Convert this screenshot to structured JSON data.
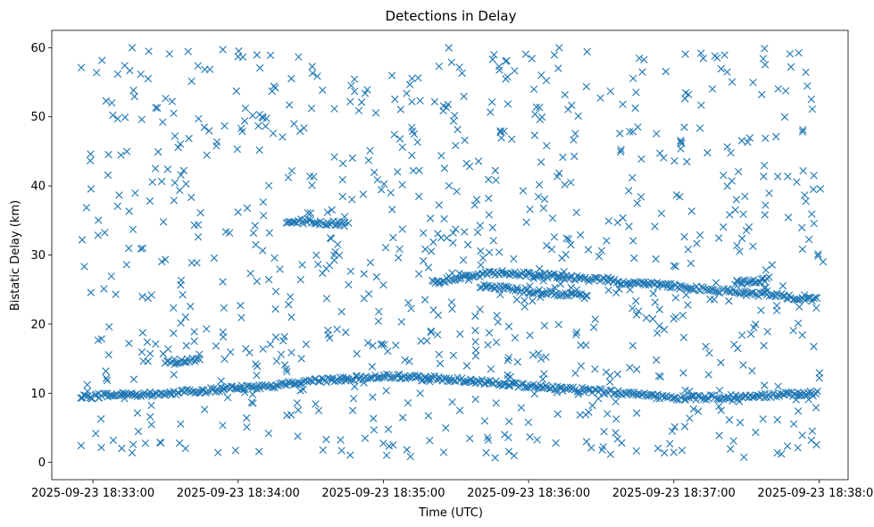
{
  "chart_data": {
    "type": "scatter",
    "title": "Detections in Delay",
    "xlabel": "Time (UTC)",
    "ylabel": "Bistatic Delay (km)",
    "marker": "x",
    "color": "#1f77b4",
    "grid": false,
    "x_tick_labels": [
      "2025-09-23 18:33:00",
      "2025-09-23 18:34:00",
      "2025-09-23 18:35:00",
      "2025-09-23 18:36:00",
      "2025-09-23 18:37:00",
      "2025-09-23 18:38:00"
    ],
    "y_ticks": [
      0,
      10,
      20,
      30,
      40,
      50,
      60
    ],
    "xlim": [
      "2025-09-23 18:32:43",
      "2025-09-23 18:38:12"
    ],
    "ylim": [
      -2.5,
      62.5
    ],
    "series": [
      {
        "trend_tracks": [
          {
            "points": [
              [
                "18:32:55",
                9.5
              ],
              [
                "18:33:30",
                10.0
              ],
              [
                "18:33:50",
                10.5
              ],
              [
                "18:34:10",
                11.0
              ],
              [
                "18:34:40",
                12.0
              ],
              [
                "18:35:00",
                12.5
              ],
              [
                "18:35:30",
                12.0
              ],
              [
                "18:36:00",
                11.0
              ],
              [
                "18:36:30",
                10.3
              ],
              [
                "18:37:00",
                9.3
              ],
              [
                "18:37:30",
                9.5
              ],
              [
                "18:38:00",
                10.0
              ]
            ]
          },
          {
            "points": [
              [
                "18:33:30",
                14.5
              ],
              [
                "18:33:45",
                14.8
              ]
            ]
          },
          {
            "points": [
              [
                "18:34:20",
                35.0
              ],
              [
                "18:34:45",
                34.5
              ]
            ]
          },
          {
            "points": [
              [
                "18:35:20",
                26.0
              ],
              [
                "18:35:45",
                27.5
              ],
              [
                "18:36:10",
                27.0
              ],
              [
                "18:36:40",
                26.0
              ],
              [
                "18:37:00",
                25.5
              ],
              [
                "18:37:30",
                24.5
              ],
              [
                "18:38:00",
                23.5
              ]
            ]
          },
          {
            "points": [
              [
                "18:35:40",
                25.5
              ],
              [
                "18:35:55",
                25.0
              ],
              [
                "18:36:10",
                24.5
              ],
              [
                "18:36:25",
                24.0
              ]
            ]
          },
          {
            "points": [
              [
                "18:37:25",
                26.0
              ],
              [
                "18:37:40",
                26.5
              ]
            ]
          }
        ],
        "random_scatter": {
          "count": 900,
          "x_range": [
            "18:32:55",
            "18:38:02"
          ],
          "y_range": [
            0.5,
            60
          ]
        }
      }
    ]
  }
}
